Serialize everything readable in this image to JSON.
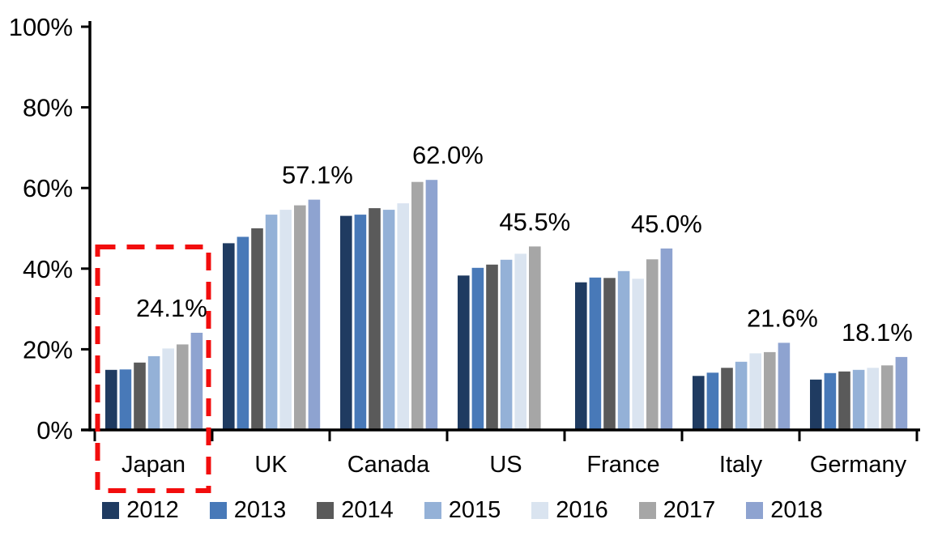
{
  "chart_data": {
    "type": "bar",
    "title": "",
    "categories": [
      "Japan",
      "UK",
      "Canada",
      "US",
      "France",
      "Italy",
      "Germany"
    ],
    "series": [
      {
        "name": "2012",
        "color": "#1F3B61",
        "values": [
          14.9,
          46.3,
          53.1,
          38.3,
          36.6,
          13.4,
          12.5
        ]
      },
      {
        "name": "2013",
        "color": "#4879B8",
        "values": [
          15.0,
          47.9,
          53.4,
          40.2,
          37.8,
          14.2,
          14.1
        ]
      },
      {
        "name": "2014",
        "color": "#5A5A5A",
        "values": [
          16.7,
          50.0,
          55.0,
          41.0,
          37.7,
          15.4,
          14.5
        ]
      },
      {
        "name": "2015",
        "color": "#94B1D7",
        "values": [
          18.3,
          53.4,
          54.6,
          42.2,
          39.4,
          16.9,
          14.9
        ]
      },
      {
        "name": "2016",
        "color": "#DAE4F0",
        "values": [
          20.2,
          54.6,
          56.2,
          43.7,
          37.5,
          19.0,
          15.4
        ]
      },
      {
        "name": "2017",
        "color": "#A6A6A6",
        "values": [
          21.2,
          55.7,
          61.5,
          45.5,
          42.3,
          19.3,
          16.0
        ]
      },
      {
        "name": "2018",
        "color": "#8EA3D0",
        "values": [
          24.1,
          57.1,
          62.0,
          null,
          45.0,
          21.6,
          18.1
        ]
      }
    ],
    "data_labels": [
      {
        "category": "Japan",
        "text": "24.1%",
        "dx": -31
      },
      {
        "category": "UK",
        "text": "57.1%",
        "dx": 4
      },
      {
        "category": "Canada",
        "text": "62.0%",
        "dx": 20
      },
      {
        "category": "US",
        "text": "45.5%",
        "dx": 0
      },
      {
        "category": "France",
        "text": "45.0%",
        "dx": 0
      },
      {
        "category": "Italy",
        "text": "21.6%",
        "dx": -2
      },
      {
        "category": "Germany",
        "text": "18.1%",
        "dx": -30
      }
    ],
    "y_axis": {
      "min": 0,
      "max": 100,
      "tick_labels": [
        "0%",
        "20%",
        "40%",
        "60%",
        "80%",
        "100%"
      ],
      "tick_values": [
        0,
        20,
        40,
        60,
        80,
        100
      ],
      "grid": false
    },
    "legend": {
      "position": "bottom",
      "entries": [
        "2012",
        "2013",
        "2014",
        "2015",
        "2016",
        "2017",
        "2018"
      ]
    },
    "highlight": {
      "category": "Japan",
      "style": "dashed-box",
      "color": "#F20D0D"
    },
    "colors": {
      "axis": "#000000",
      "text": "#000000",
      "background": "#FFFFFF"
    }
  }
}
